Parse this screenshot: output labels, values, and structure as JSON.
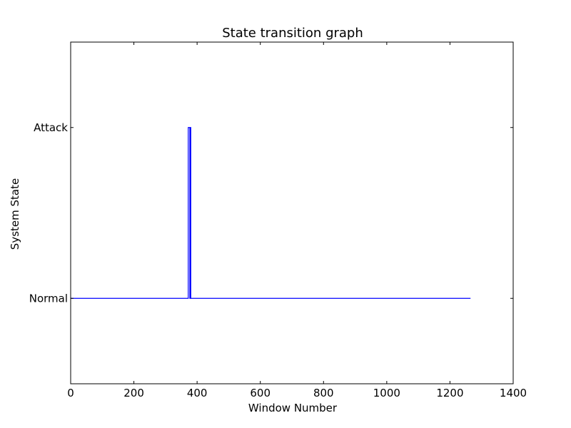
{
  "chart_data": {
    "type": "line",
    "title": "State transition graph",
    "xlabel": "Window Number",
    "ylabel": "System State",
    "xlim": [
      0,
      1400
    ],
    "ylim": [
      -0.5,
      1.5
    ],
    "x_ticks": [
      0,
      200,
      400,
      600,
      800,
      1000,
      1200,
      1400
    ],
    "x_tick_labels": [
      "0",
      "200",
      "400",
      "600",
      "800",
      "1000",
      "1200",
      "1400"
    ],
    "y_ticks": [
      0,
      1
    ],
    "y_tick_labels": [
      "Normal",
      "Attack"
    ],
    "grid": false,
    "series": [
      {
        "color": "#0000ff",
        "step": true,
        "x": [
          0,
          371,
          372,
          376,
          377,
          379,
          380,
          1265
        ],
        "y": [
          0,
          0,
          1,
          1,
          0,
          1,
          0,
          0
        ]
      }
    ]
  }
}
